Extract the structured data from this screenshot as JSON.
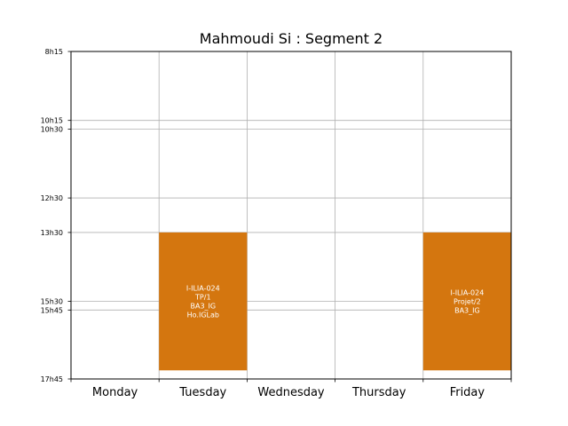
{
  "chart_data": {
    "type": "timetable",
    "title": "Mahmoudi Si : Segment 2",
    "days": [
      "Monday",
      "Tuesday",
      "Wednesday",
      "Thursday",
      "Friday"
    ],
    "time_ticks": [
      {
        "label": "8h15",
        "minutes": 495
      },
      {
        "label": "10h15",
        "minutes": 615
      },
      {
        "label": "10h30",
        "minutes": 630
      },
      {
        "label": "12h30",
        "minutes": 750
      },
      {
        "label": "13h30",
        "minutes": 810
      },
      {
        "label": "15h30",
        "minutes": 930
      },
      {
        "label": "15h45",
        "minutes": 945
      },
      {
        "label": "17h45",
        "minutes": 1065
      }
    ],
    "grid": true,
    "block_color": "#d4760f",
    "blocks": [
      {
        "day": "Tuesday",
        "start": "13h30",
        "end": "17h30",
        "start_minutes": 810,
        "end_minutes": 1050,
        "lines": [
          "I-ILIA-024",
          "TP/1",
          "BA3_IG",
          "Ho.IGLab"
        ]
      },
      {
        "day": "Friday",
        "start": "13h30",
        "end": "17h30",
        "start_minutes": 810,
        "end_minutes": 1050,
        "lines": [
          "I-ILIA-024",
          "Projet/2",
          "BA3_IG"
        ]
      }
    ]
  }
}
